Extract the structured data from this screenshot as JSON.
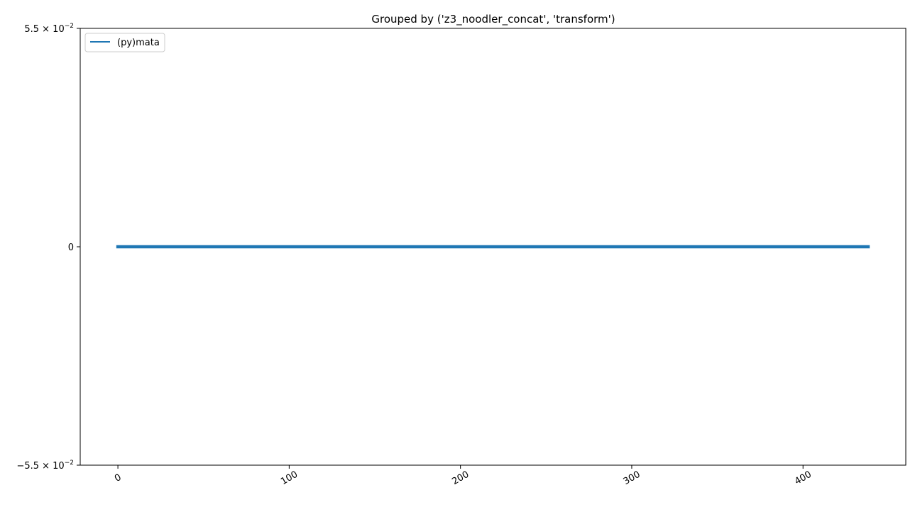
{
  "chart_data": {
    "type": "line",
    "title": "Grouped by ('z3_noodler_concat', 'transform')",
    "xlabel": "",
    "ylabel": "",
    "xlim": [
      -22,
      460
    ],
    "ylim": [
      -0.055,
      0.055
    ],
    "x_ticks": [
      0,
      100,
      200,
      300,
      400
    ],
    "x_tick_labels": [
      "0",
      "100",
      "200",
      "300",
      "400"
    ],
    "y_ticks": [
      {
        "value": -0.055,
        "mantissa": "−5.5",
        "times": "×",
        "base": "10",
        "exponent": "−2"
      },
      {
        "value": 0,
        "label": "0"
      },
      {
        "value": 0.055,
        "mantissa": "5.5",
        "times": "×",
        "base": "10",
        "exponent": "−2"
      }
    ],
    "grid": false,
    "legend_position": "top-left",
    "series": [
      {
        "name": "(py)mata",
        "color": "#1f77b4",
        "x": [
          0,
          438
        ],
        "y": [
          0,
          0
        ]
      }
    ]
  }
}
